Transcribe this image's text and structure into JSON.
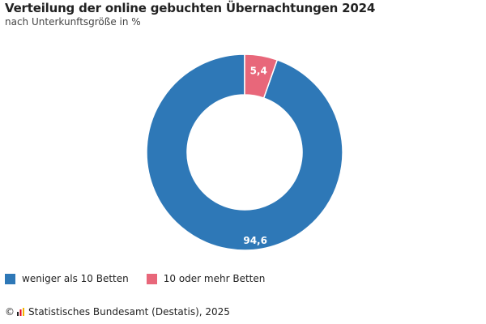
{
  "header": {
    "title": "Verteilung der online gebuchten Übernachtungen 2024",
    "subtitle": "nach Unterkunftsgröße in %"
  },
  "chart_data": {
    "type": "pie",
    "variant": "donut",
    "title": "Verteilung der online gebuchten Übernachtungen 2024",
    "subtitle": "nach Unterkunftsgröße in %",
    "unit": "%",
    "categories": [
      "weniger als 10 Betten",
      "10 oder mehr Betten"
    ],
    "values": [
      94.6,
      5.4
    ],
    "value_labels": [
      "94,6",
      "5,4"
    ],
    "colors": [
      "#2e78b7",
      "#e8677a"
    ],
    "legend_position": "bottom-left"
  },
  "legend": {
    "items": [
      {
        "label": "weniger als 10 Betten",
        "color": "#2e78b7"
      },
      {
        "label": "10 oder mehr Betten",
        "color": "#e8677a"
      }
    ]
  },
  "footer": {
    "copyright": "©",
    "logo_icon": "destatis-logo-icon",
    "source": "Statistisches Bundesamt (Destatis), 2025"
  }
}
